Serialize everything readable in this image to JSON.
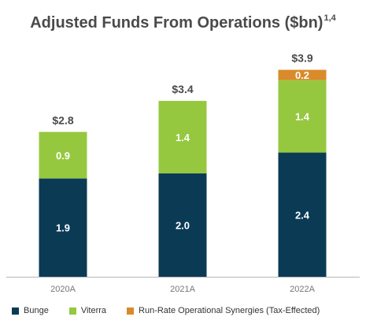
{
  "chart_data": {
    "type": "stacked-bar",
    "title": "Adjusted Funds From Operations ($bn)",
    "title_superscript": "1,4",
    "categories": [
      "2020A",
      "2021A",
      "2022A"
    ],
    "totals": [
      "$2.8",
      "$3.4",
      "$3.9"
    ],
    "series": [
      {
        "name": "Bunge",
        "color": "#0b3a55",
        "values": [
          1.9,
          2.0,
          2.4
        ]
      },
      {
        "name": "Viterra",
        "color": "#96c83f",
        "values": [
          0.9,
          1.4,
          1.4
        ]
      },
      {
        "name": "Run-Rate Operational Synergies (Tax-Effected)",
        "color": "#d98a2b",
        "values": [
          0,
          0,
          0.2
        ]
      }
    ],
    "ylim": [
      0,
      4.1
    ],
    "grid": false,
    "legend_position": "bottom"
  }
}
